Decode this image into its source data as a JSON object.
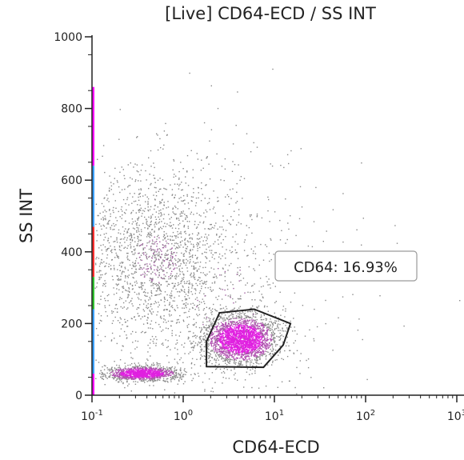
{
  "chart_data": {
    "type": "scatter",
    "title": "[Live] CD64-ECD / SS INT",
    "xlabel": "CD64-ECD",
    "ylabel": "SS INT",
    "x_scale": "log",
    "x_ticks": [
      {
        "value": 0.1,
        "base": "10",
        "exp": "-1"
      },
      {
        "value": 1,
        "base": "10",
        "exp": "0"
      },
      {
        "value": 10,
        "base": "10",
        "exp": "1"
      },
      {
        "value": 100,
        "base": "10",
        "exp": "2"
      },
      {
        "value": 1000,
        "base": "10",
        "exp": "3"
      }
    ],
    "y_ticks": [
      "0",
      "200",
      "400",
      "600",
      "800",
      "1000"
    ],
    "ylim": [
      0,
      1000
    ],
    "grid": false,
    "colors": {
      "events": "#8a8a8a",
      "dense": "#e020e0",
      "gate": "#222222",
      "axis_strip": [
        "#ff00ff",
        "#3aa0ff",
        "#ff3030",
        "#30c030"
      ]
    },
    "populations": [
      {
        "x_center": 0.5,
        "x_spread_decades": 0.45,
        "y_center": 380,
        "y_spread": 130,
        "count": 1900,
        "density": "low"
      },
      {
        "x_center": 0.35,
        "x_spread_decades": 0.2,
        "y_center": 62,
        "y_spread": 10,
        "count": 1300,
        "density": "high"
      },
      {
        "x_center": 4.2,
        "x_spread_decades": 0.2,
        "y_center": 158,
        "y_spread": 34,
        "count": 2600,
        "density": "high"
      },
      {
        "x_center": 3,
        "x_spread_decades": 0.7,
        "y_center": 260,
        "y_spread": 200,
        "count": 500,
        "density": "low"
      }
    ],
    "gate": {
      "name": "CD64",
      "label": "CD64: 16.93%",
      "percent": 16.93,
      "polygon": [
        [
          1.8,
          80
        ],
        [
          7.6,
          78
        ],
        [
          12.5,
          140
        ],
        [
          15,
          200
        ],
        [
          6,
          240
        ],
        [
          2.5,
          230
        ],
        [
          1.8,
          150
        ]
      ]
    }
  }
}
